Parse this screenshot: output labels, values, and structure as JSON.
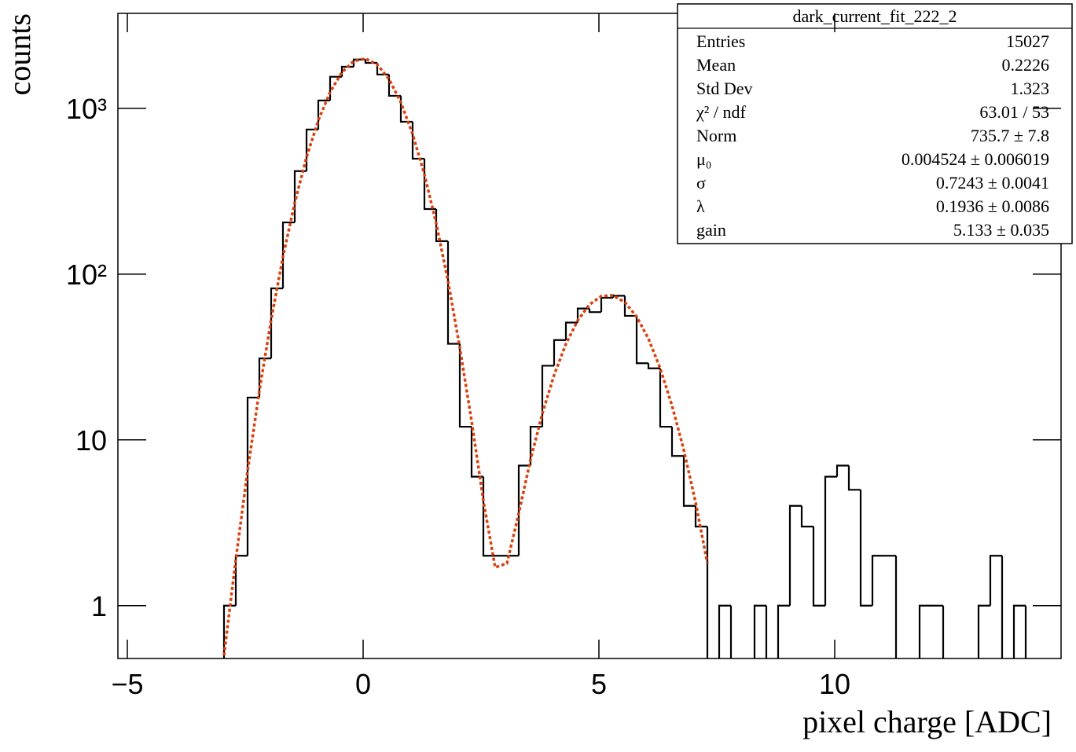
{
  "chart_data": {
    "type": "histogram",
    "xlabel": "pixel charge [ADC]",
    "ylabel": "counts",
    "yscale": "log",
    "color": "#000000",
    "bins": [
      -5.2,
      -4.95,
      -4.7,
      -4.45,
      -4.2,
      -3.95,
      -3.7,
      -3.45,
      -3.2,
      -2.95,
      -2.7,
      -2.45,
      -2.2,
      -1.95,
      -1.7,
      -1.45,
      -1.2,
      -0.95,
      -0.7,
      -0.45,
      -0.2,
      0.05,
      0.3,
      0.55,
      0.8,
      1.05,
      1.3,
      1.55,
      1.8,
      2.05,
      2.3,
      2.55,
      2.8,
      3.05,
      3.3,
      3.55,
      3.8,
      4.05,
      4.3,
      4.55,
      4.8,
      5.05,
      5.3,
      5.55,
      5.8,
      6.05,
      6.3,
      6.55,
      6.8,
      7.05,
      7.3,
      7.55,
      7.8,
      8.05,
      8.3,
      8.55,
      8.8,
      9.05,
      9.3,
      9.55,
      9.8,
      10.05,
      10.3,
      10.55,
      10.8,
      11.05,
      11.3,
      11.55,
      11.8,
      12.05,
      12.3,
      12.55,
      12.8,
      13.05,
      13.3,
      13.55,
      13.8,
      14.05,
      14.3,
      14.55,
      14.8
    ],
    "values": [
      0,
      0,
      0,
      0,
      0,
      0,
      0,
      0,
      0,
      1,
      2,
      18,
      31,
      82,
      205,
      418,
      745,
      1115,
      1550,
      1780,
      1970,
      1880,
      1600,
      1190,
      830,
      497,
      247,
      158,
      38,
      12,
      6,
      2,
      2,
      2,
      7,
      12,
      28,
      40,
      51,
      62,
      59,
      72,
      74,
      56,
      29,
      27,
      12,
      8,
      4,
      3,
      0,
      1,
      0,
      0,
      1,
      0,
      1,
      4,
      3,
      1,
      6,
      7,
      5,
      1,
      2,
      2,
      0,
      0,
      1,
      1,
      0,
      0,
      0,
      1,
      2,
      0,
      1,
      0,
      0,
      0
    ],
    "fit": {
      "color": "#d9410f",
      "x": [
        -2.95,
        -2.7,
        -2.45,
        -2.2,
        -1.95,
        -1.7,
        -1.45,
        -1.2,
        -0.95,
        -0.7,
        -0.45,
        -0.2,
        0.05,
        0.3,
        0.55,
        0.8,
        1.05,
        1.3,
        1.55,
        1.8,
        2.05,
        2.3,
        2.55,
        2.8,
        3.05,
        3.3,
        3.55,
        3.8,
        4.05,
        4.3,
        4.55,
        4.8,
        5.05,
        5.3,
        5.55,
        5.8,
        6.05,
        6.3,
        6.55,
        6.8,
        7.05,
        7.3
      ],
      "values": [
        0.5,
        1.9,
        6.5,
        19.8,
        53,
        127,
        269,
        507,
        846,
        1253,
        1649,
        1925,
        1995,
        1836,
        1499,
        1086,
        699,
        399,
        202,
        91,
        36,
        13,
        4.3,
        1.7,
        1.8,
        3.6,
        7.6,
        14.4,
        24.6,
        37.9,
        52.5,
        65.5,
        73.6,
        74.4,
        67.6,
        55.4,
        40.8,
        27,
        16.1,
        8.7,
        4.2,
        1.8
      ]
    },
    "xlim": [
      -5.2,
      14.8
    ],
    "xticks": [
      {
        "value": -5,
        "label": "−5"
      },
      0,
      5,
      10
    ],
    "ylim": [
      0.48,
      3740
    ],
    "yticks": [
      1,
      10,
      {
        "value": 100,
        "label": "10²"
      },
      {
        "value": 1000,
        "label": "10³"
      }
    ],
    "stats_box": {
      "title": "dark_current_fit_222_2",
      "rows": [
        {
          "label": "Entries",
          "value": "15027"
        },
        {
          "label": "Mean",
          "value": "0.2226"
        },
        {
          "label": "Std Dev",
          "value": "1.323"
        },
        {
          "label": "χ² / ndf",
          "value": "63.01 / 53"
        },
        {
          "label": "Norm",
          "value": "735.7 ± 7.8"
        },
        {
          "label": "μ₀",
          "value": "0.004524 ± 0.006019"
        },
        {
          "label": "σ",
          "value": "0.7243 ± 0.0041"
        },
        {
          "label": "λ",
          "value": "0.1936 ± 0.0086"
        },
        {
          "label": "gain",
          "value": "5.133 ± 0.035"
        }
      ]
    }
  }
}
